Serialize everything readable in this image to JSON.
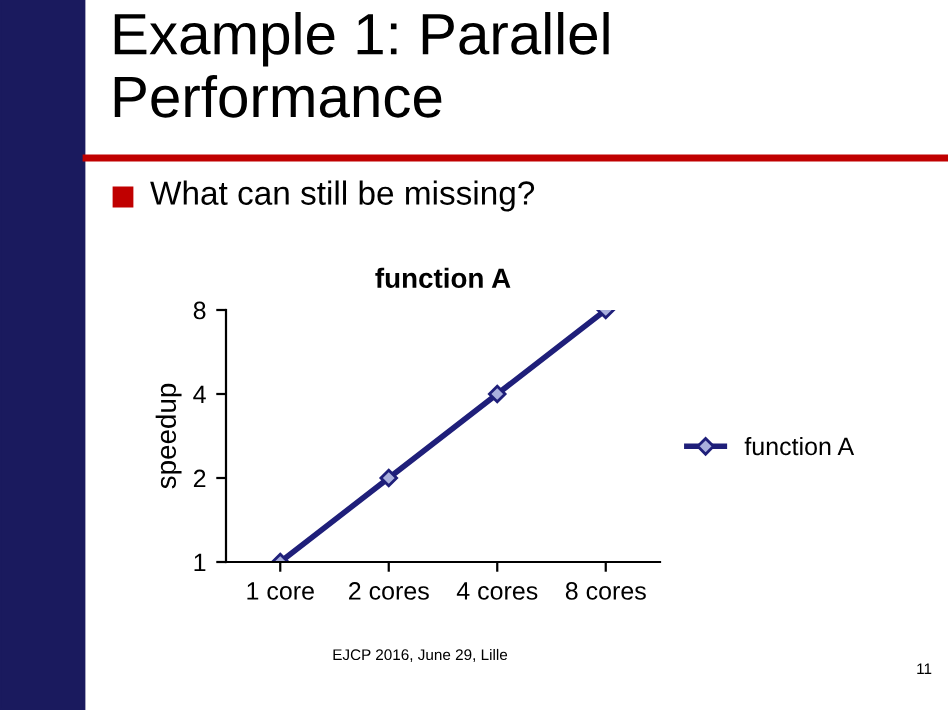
{
  "chart_data": {
    "type": "line",
    "title": "function A",
    "ylabel": "speedup",
    "categories": [
      "1 core",
      "2 cores",
      "4 cores",
      "8 cores"
    ],
    "series": [
      {
        "name": "function A",
        "color": "#1f1f7a",
        "values": [
          1,
          2,
          4,
          8
        ]
      }
    ],
    "log": "y",
    "ylim": [
      1,
      8
    ],
    "yticks": [
      1,
      2,
      4,
      8
    ],
    "grid": false,
    "legend": "right",
    "marker": "diamond",
    "line_style": "solid",
    "annotations": [
      "Example 1: Parallel Performance",
      "What can still be missing?",
      "EJCP 2016, June 29, Lille",
      "11"
    ]
  }
}
